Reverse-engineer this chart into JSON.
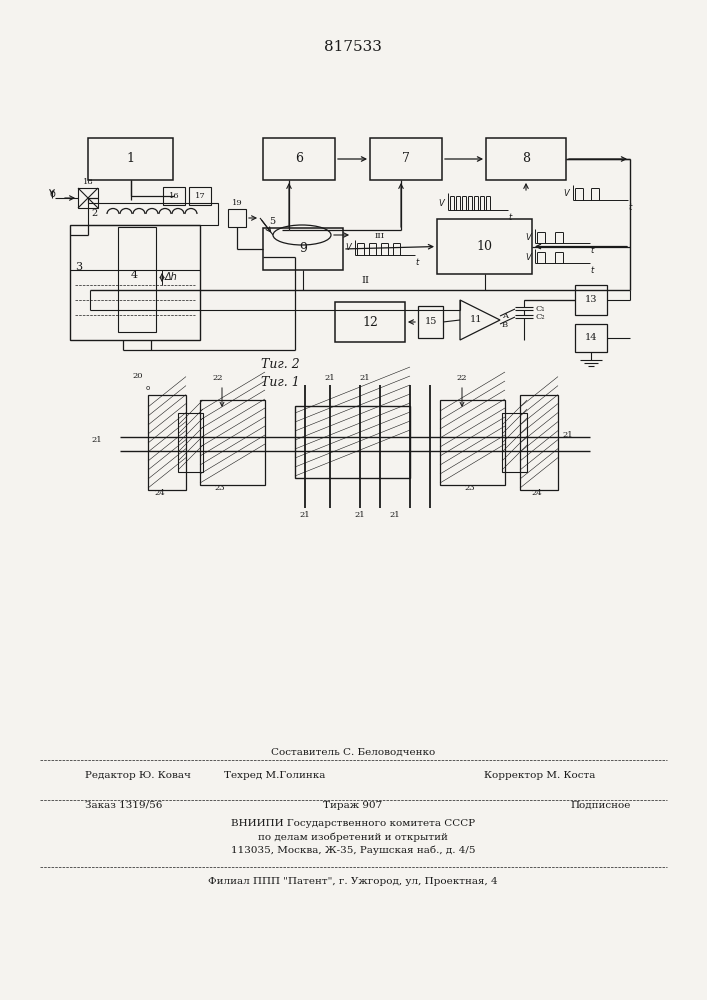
{
  "title": "817533",
  "fig1_caption": "Τиг. 1",
  "fig2_caption": "Τиг. 2",
  "bg_color": "#f5f3ef",
  "line_color": "#1a1a1a",
  "footer_text": [
    [
      353,
      248,
      "Составитель С. Беловодченко",
      "center"
    ],
    [
      85,
      225,
      "Редактор Ю. Ковач",
      "left"
    ],
    [
      275,
      225,
      "Техред М.Голинка",
      "center"
    ],
    [
      540,
      225,
      "Корректор М. Коста",
      "center"
    ],
    [
      85,
      195,
      "Заказ 1319/56",
      "left"
    ],
    [
      353,
      195,
      "Тираж 907",
      "center"
    ],
    [
      570,
      195,
      "Подписное",
      "left"
    ],
    [
      353,
      176,
      "ВНИИПИ Государственного комитета СССР",
      "center"
    ],
    [
      353,
      163,
      "по делам изобретений и открытий",
      "center"
    ],
    [
      353,
      150,
      "113035, Москва, Ж-35, Раушская наб., д. 4/5",
      "center"
    ],
    [
      353,
      118,
      "Филиал ППП \"Патент\", г. Ужгород, ул, Проектная, 4",
      "center"
    ]
  ]
}
